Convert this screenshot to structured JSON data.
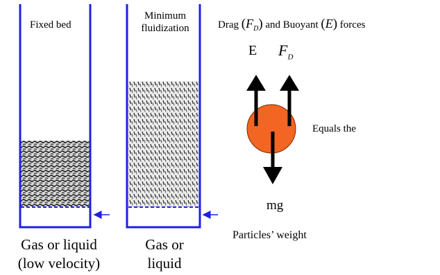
{
  "fixed_bed": {
    "title": "Fixed bed",
    "caption_line1": "Gas or liquid",
    "caption_line2": "(low velocity)"
  },
  "min_fluid": {
    "title_line1": "Minimum",
    "title_line2": "fluidization",
    "caption_line1": "Gas or",
    "caption_line2": "liquid"
  },
  "forces": {
    "header_drag": "Drag",
    "header_fd_sym": "F",
    "header_fd_sub": "D",
    "header_mid": "and Buoyant",
    "header_e_sym": "E",
    "header_end": "forces",
    "buoyant_label": "E",
    "drag_label_sym": "F",
    "drag_label_sub": "D",
    "equals_text": "Equals the",
    "weight_label": "mg",
    "particles_weight": "Particles’ weight"
  },
  "colors": {
    "column_outline": "#1f1fe6",
    "particle_fill": "#f26522",
    "arrow": "#000000",
    "bed_dark": "#2a2a2a"
  }
}
